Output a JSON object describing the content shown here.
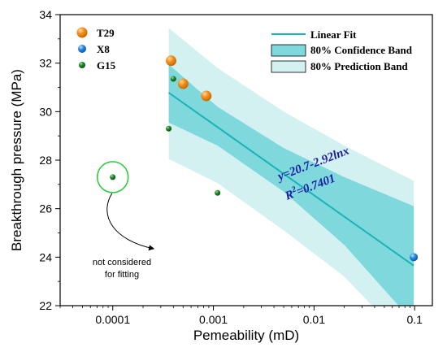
{
  "chart_data": {
    "type": "scatter",
    "title": "",
    "xlabel": "Pemeability (mD)",
    "ylabel": "Breakthrough pressure (MPa)",
    "x_scale": "log",
    "xlim": [
      3e-05,
      0.15
    ],
    "ylim": [
      22,
      34
    ],
    "x_ticks": [
      {
        "value": 0.0001,
        "label": "0.0001"
      },
      {
        "value": 0.001,
        "label": "0.001"
      },
      {
        "value": 0.01,
        "label": "0.01"
      },
      {
        "value": 0.1,
        "label": "0.1"
      }
    ],
    "y_ticks": [
      {
        "value": 22,
        "label": "22"
      },
      {
        "value": 24,
        "label": "24"
      },
      {
        "value": 26,
        "label": "26"
      },
      {
        "value": 28,
        "label": "28"
      },
      {
        "value": 30,
        "label": "30"
      },
      {
        "value": 32,
        "label": "32"
      },
      {
        "value": 34,
        "label": "34"
      }
    ],
    "series": [
      {
        "name": "T29",
        "color": "#f5921e",
        "points": [
          {
            "x": 0.00038,
            "y": 32.1
          },
          {
            "x": 0.0005,
            "y": 31.15
          },
          {
            "x": 0.00085,
            "y": 30.65
          }
        ]
      },
      {
        "name": "X8",
        "color": "#2a8be0",
        "points": [
          {
            "x": 0.098,
            "y": 24.0
          }
        ]
      },
      {
        "name": "G15",
        "color": "#22862a",
        "points": [
          {
            "x": 0.0001,
            "y": 27.3
          },
          {
            "x": 0.00036,
            "y": 29.3
          },
          {
            "x": 0.0004,
            "y": 31.35
          },
          {
            "x": 0.0011,
            "y": 26.65
          }
        ]
      }
    ],
    "fit": {
      "name": "Linear Fit",
      "color": "#1bb3b8",
      "x_range": [
        0.00036,
        0.098
      ],
      "y_start": 30.78,
      "y_end": 23.65,
      "confidence_band": {
        "name": "80% Confidence Band",
        "color": "#7fd8dc",
        "upper": [
          {
            "x": 0.00036,
            "y": 31.95
          },
          {
            "x": 0.0011,
            "y": 30.2
          },
          {
            "x": 0.005,
            "y": 28.5
          },
          {
            "x": 0.02,
            "y": 27.3
          },
          {
            "x": 0.098,
            "y": 26.1
          }
        ],
        "lower": [
          {
            "x": 0.00036,
            "y": 29.55
          },
          {
            "x": 0.0011,
            "y": 28.6
          },
          {
            "x": 0.005,
            "y": 26.7
          },
          {
            "x": 0.02,
            "y": 24.5
          },
          {
            "x": 0.098,
            "y": 21.3
          }
        ]
      },
      "prediction_band": {
        "name": "80% Prediction Band",
        "color": "#d4f1f2",
        "upper": [
          {
            "x": 0.00036,
            "y": 33.45
          },
          {
            "x": 0.0011,
            "y": 31.8
          },
          {
            "x": 0.005,
            "y": 30.0
          },
          {
            "x": 0.02,
            "y": 28.6
          },
          {
            "x": 0.098,
            "y": 27.15
          }
        ],
        "lower": [
          {
            "x": 0.00036,
            "y": 28.05
          },
          {
            "x": 0.0011,
            "y": 27.05
          },
          {
            "x": 0.005,
            "y": 25.1
          },
          {
            "x": 0.02,
            "y": 23.2
          },
          {
            "x": 0.098,
            "y": 20.2
          }
        ]
      }
    },
    "equation": "y=20.7-2.92lnx",
    "r2_label": "R",
    "r2_sup": "2",
    "r2_value": "=0.7401",
    "annotation": {
      "line1": "not considered",
      "line2": "for fitting",
      "target": {
        "x": 0.0001,
        "y": 27.3
      }
    },
    "legend_left": [
      "T29",
      "X8",
      "G15"
    ],
    "legend_right": [
      "Linear Fit",
      "80% Confidence Band",
      "80% Prediction Band"
    ]
  },
  "colors": {
    "axis": "#000000",
    "circle": "#2ecc40",
    "arrow": "#000000"
  }
}
